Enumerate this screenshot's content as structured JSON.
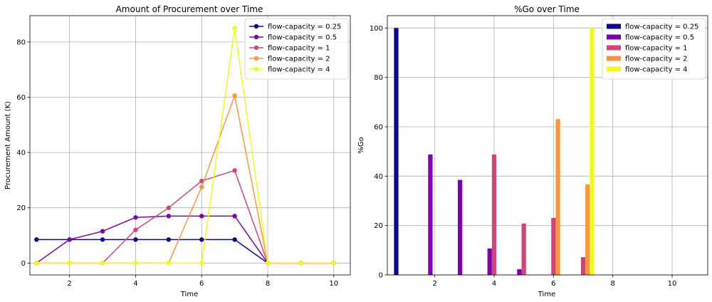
{
  "chart_data": [
    {
      "type": "line",
      "title": "Amount of Procurement over Time",
      "xlabel": "Time",
      "ylabel": "Procurement Amount (K)",
      "xlim": [
        0.8,
        10.5
      ],
      "ylim": [
        -4.3,
        89.5
      ],
      "xticks": [
        2,
        4,
        6,
        8,
        10
      ],
      "yticks": [
        0,
        20,
        40,
        60,
        80
      ],
      "grid": true,
      "legend_position": "top-right",
      "x": [
        1,
        2,
        3,
        4,
        5,
        6,
        7,
        8,
        9,
        10
      ],
      "series": [
        {
          "name": "flow-capacity = 0.25",
          "color": "#0d0887",
          "values": [
            8.5,
            8.5,
            8.5,
            8.5,
            8.5,
            8.5,
            8.5,
            0,
            0,
            0
          ]
        },
        {
          "name": "flow-capacity = 0.5",
          "color": "#7e03a8",
          "values": [
            0,
            8.5,
            11.5,
            16.5,
            17,
            17,
            17,
            0,
            0,
            0
          ]
        },
        {
          "name": "flow-capacity = 1",
          "color": "#cc4778",
          "values": [
            0,
            0,
            0,
            12,
            20,
            29.7,
            33.5,
            0,
            0,
            0
          ]
        },
        {
          "name": "flow-capacity = 2",
          "color": "#f89540",
          "values": [
            0,
            0,
            0,
            0,
            0,
            27.5,
            60.6,
            0,
            0,
            0
          ]
        },
        {
          "name": "flow-capacity = 4",
          "color": "#f0f921",
          "values": [
            0,
            0,
            0,
            0,
            0,
            0,
            85,
            0,
            0,
            0
          ]
        }
      ]
    },
    {
      "type": "bar",
      "title": "%Go over Time",
      "xlabel": "Time",
      "ylabel": "%Go",
      "xlim": [
        0.4,
        11.2
      ],
      "ylim": [
        0,
        105
      ],
      "xticks": [
        2,
        4,
        6,
        8,
        10
      ],
      "yticks": [
        0,
        20,
        40,
        60,
        80,
        100
      ],
      "grid": true,
      "legend_position": "top-right",
      "x": [
        1,
        2,
        3,
        4,
        5,
        6,
        7
      ],
      "bar_width": 0.15,
      "series": [
        {
          "name": "flow-capacity = 0.25",
          "color": "#0d0887",
          "values": [
            100,
            0,
            0,
            0,
            0,
            0,
            0
          ]
        },
        {
          "name": "flow-capacity = 0.5",
          "color": "#7e03a8",
          "values": [
            0,
            48.8,
            38.5,
            10.7,
            2.3,
            0,
            0
          ]
        },
        {
          "name": "flow-capacity = 1",
          "color": "#cc4778",
          "values": [
            0,
            0,
            0,
            48.8,
            20.8,
            23.1,
            7.2
          ]
        },
        {
          "name": "flow-capacity = 2",
          "color": "#f89540",
          "values": [
            0,
            0,
            0,
            0,
            0,
            63.1,
            36.7
          ]
        },
        {
          "name": "flow-capacity = 4",
          "color": "#f0f921",
          "values": [
            0,
            0,
            0,
            0,
            0,
            0,
            100
          ]
        }
      ]
    }
  ]
}
